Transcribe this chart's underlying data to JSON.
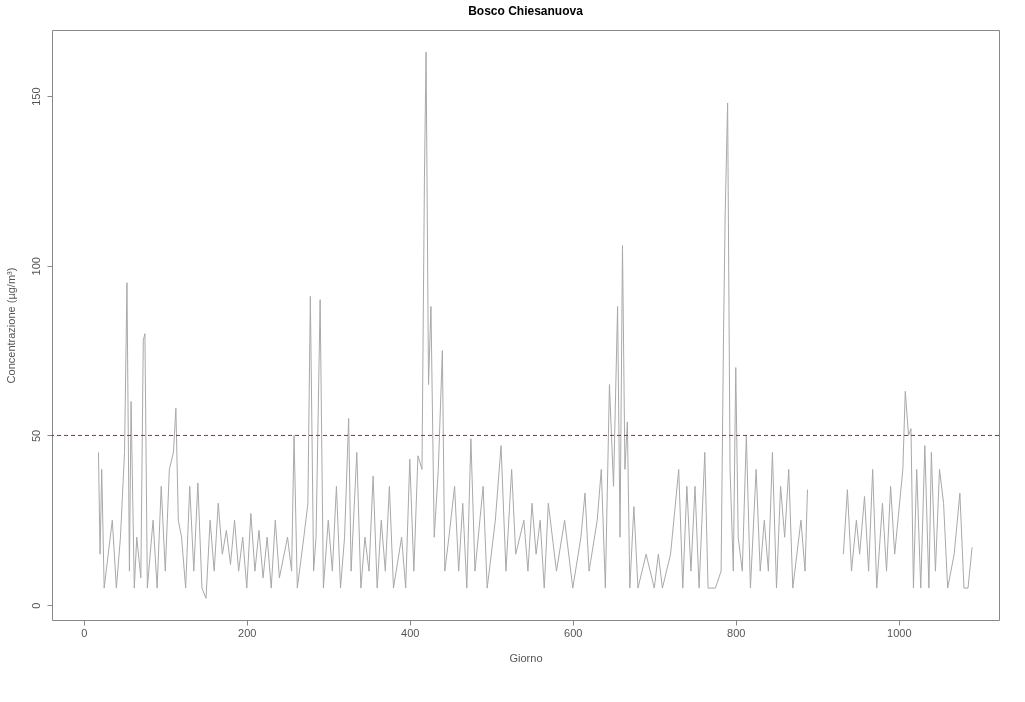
{
  "chart_data": {
    "type": "line",
    "title": "Bosco Chiesanuova",
    "xlabel": "Giorno",
    "ylabel": "Concentrazione (µg/m³)",
    "x": [
      18,
      20,
      22,
      25,
      30,
      35,
      40,
      45,
      50,
      53,
      56,
      58,
      62,
      65,
      70,
      73,
      75,
      78,
      85,
      90,
      95,
      100,
      105,
      110,
      113,
      116,
      120,
      125,
      130,
      135,
      140,
      145,
      150,
      155,
      160,
      165,
      170,
      175,
      180,
      185,
      190,
      195,
      200,
      205,
      210,
      215,
      220,
      225,
      230,
      235,
      240,
      250,
      255,
      258,
      262,
      270,
      275,
      278,
      282,
      285,
      290,
      294,
      300,
      305,
      310,
      315,
      320,
      325,
      328,
      335,
      340,
      345,
      350,
      355,
      360,
      365,
      370,
      375,
      380,
      390,
      395,
      400,
      405,
      410,
      415,
      418,
      420,
      423,
      426,
      430,
      435,
      440,
      443,
      448,
      455,
      460,
      465,
      470,
      475,
      480,
      490,
      495,
      505,
      512,
      518,
      525,
      530,
      540,
      545,
      550,
      555,
      560,
      565,
      570,
      580,
      590,
      600,
      610,
      615,
      620,
      630,
      635,
      640,
      645,
      650,
      655,
      658,
      661,
      664,
      667,
      670,
      675,
      680,
      690,
      700,
      705,
      710,
      720,
      730,
      735,
      740,
      745,
      750,
      755,
      762,
      766,
      775,
      782,
      785,
      787,
      790,
      793,
      797,
      800,
      803,
      808,
      813,
      818,
      825,
      830,
      835,
      840,
      845,
      850,
      855,
      860,
      865,
      870,
      880,
      885,
      888,
      910,
      932,
      937,
      942,
      948,
      952,
      958,
      963,
      968,
      973,
      980,
      985,
      990,
      995,
      1005,
      1008,
      1012,
      1015,
      1018,
      1022,
      1027,
      1032,
      1037,
      1040,
      1045,
      1050,
      1055,
      1060,
      1068,
      1075,
      1080,
      1085,
      1090
    ],
    "series": [
      {
        "color": "#a9a9a9",
        "values": [
          45,
          15,
          40,
          5,
          15,
          25,
          5,
          20,
          45,
          95,
          10,
          60,
          5,
          20,
          8,
          78,
          80,
          5,
          25,
          5,
          35,
          10,
          40,
          45,
          58,
          25,
          20,
          5,
          35,
          10,
          36,
          5,
          2,
          25,
          10,
          30,
          15,
          22,
          12,
          25,
          10,
          20,
          5,
          27,
          10,
          22,
          8,
          20,
          5,
          25,
          8,
          20,
          10,
          50,
          5,
          20,
          30,
          91,
          10,
          20,
          90,
          5,
          25,
          10,
          35,
          5,
          20,
          55,
          10,
          45,
          5,
          20,
          10,
          38,
          5,
          25,
          10,
          35,
          5,
          20,
          5,
          43,
          10,
          44,
          40,
          126,
          163,
          65,
          88,
          20,
          40,
          75,
          10,
          20,
          35,
          10,
          30,
          5,
          49,
          10,
          35,
          5,
          25,
          47,
          10,
          40,
          15,
          25,
          10,
          30,
          15,
          25,
          5,
          30,
          10,
          25,
          5,
          20,
          33,
          10,
          25,
          40,
          5,
          65,
          35,
          88,
          20,
          106,
          40,
          54,
          5,
          29,
          5,
          15,
          5,
          15,
          5,
          15,
          40,
          5,
          35,
          10,
          35,
          5,
          45,
          5,
          5,
          10,
          80,
          115,
          148,
          40,
          10,
          70,
          20,
          10,
          50,
          5,
          40,
          10,
          25,
          10,
          45,
          5,
          35,
          20,
          40,
          5,
          25,
          10,
          34,
          null,
          15,
          34,
          10,
          25,
          15,
          32,
          10,
          40,
          5,
          30,
          10,
          35,
          15,
          40,
          63,
          50,
          52,
          5,
          40,
          5,
          47,
          5,
          45,
          10,
          40,
          30,
          5,
          15,
          33,
          5,
          5,
          17
        ]
      }
    ],
    "xlim": [
      -39,
      1123
    ],
    "ylim": [
      -4.4,
      169.5
    ],
    "xticks": [
      0,
      200,
      400,
      600,
      800,
      1000
    ],
    "yticks": [
      0,
      50,
      100,
      150
    ],
    "ref_lines": [
      {
        "axis": "y",
        "value": 50,
        "color": "#ff0000",
        "line_style": "dashed"
      }
    ]
  }
}
